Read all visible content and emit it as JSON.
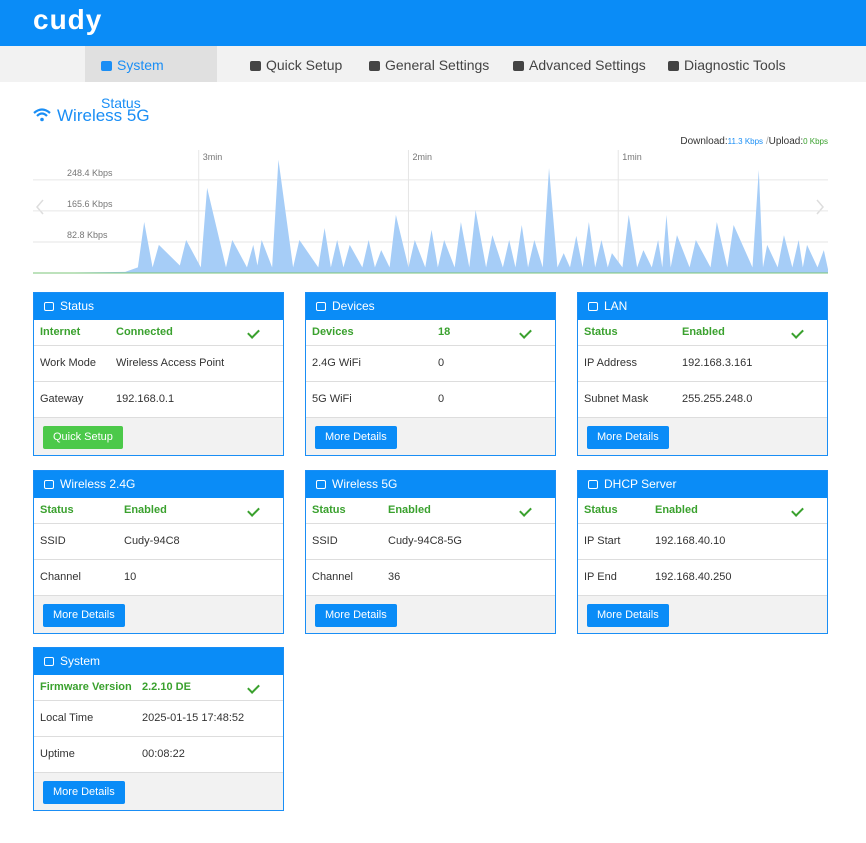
{
  "header": {
    "logo": "cudy"
  },
  "nav": [
    "System Status",
    "Quick Setup",
    "General Settings",
    "Advanced Settings",
    "Diagnostic Tools"
  ],
  "section_title": "Wireless 5G",
  "traffic": {
    "download_label": "Download:",
    "download_value": "11.3 Kbps",
    "separator": "/",
    "upload_label": "Upload:",
    "upload_value": "0 Kbps"
  },
  "chart_data": {
    "type": "area",
    "color": "#a6cdf7",
    "line_color": "#5aa8f0",
    "x": [
      3.79,
      3.35,
      3.29,
      3.26,
      3.22,
      3.19,
      3.09,
      3.06,
      2.99,
      2.96,
      2.87,
      2.84,
      2.77,
      2.74,
      2.72,
      2.7,
      2.65,
      2.62,
      2.55,
      2.52,
      2.43,
      2.4,
      2.37,
      2.34,
      2.31,
      2.28,
      2.22,
      2.19,
      2.16,
      2.13,
      2.09,
      2.06,
      2.0,
      1.97,
      1.92,
      1.89,
      1.86,
      1.83,
      1.78,
      1.75,
      1.71,
      1.68,
      1.63,
      1.6,
      1.55,
      1.52,
      1.49,
      1.46,
      1.43,
      1.4,
      1.36,
      1.33,
      1.29,
      1.26,
      1.23,
      1.2,
      1.17,
      1.14,
      1.11,
      1.08,
      1.05,
      1.03,
      0.98,
      0.95,
      0.91,
      0.88,
      0.84,
      0.81,
      0.79,
      0.77,
      0.75,
      0.72,
      0.66,
      0.63,
      0.56,
      0.53,
      0.48,
      0.45,
      0.36,
      0.33,
      0.31,
      0.29,
      0.24,
      0.21,
      0.17,
      0.14,
      0.12,
      0.1,
      0.05,
      0.02,
      0
    ],
    "values": [
      0,
      3,
      15,
      136,
      15,
      75,
      20,
      88,
      15,
      227,
      15,
      88,
      15,
      75,
      20,
      88,
      15,
      302,
      15,
      88,
      15,
      120,
      15,
      88,
      15,
      75,
      15,
      88,
      15,
      61,
      15,
      155,
      15,
      88,
      15,
      115,
      15,
      88,
      15,
      136,
      15,
      168,
      15,
      101,
      15,
      88,
      15,
      128,
      15,
      88,
      15,
      280,
      15,
      53,
      15,
      99,
      15,
      136,
      15,
      88,
      15,
      53,
      15,
      155,
      15,
      61,
      15,
      88,
      15,
      155,
      15,
      101,
      15,
      88,
      15,
      136,
      15,
      128,
      15,
      275,
      15,
      75,
      15,
      101,
      15,
      88,
      15,
      75,
      15,
      61,
      10
    ],
    "xlim": [
      3.79,
      0
    ],
    "xticks": [
      {
        "value": 3,
        "label": "3min"
      },
      {
        "value": 2,
        "label": "2min"
      },
      {
        "value": 1,
        "label": "1min"
      }
    ],
    "ylim": [
      0,
      328
    ],
    "yticks": [
      {
        "value": 82.8,
        "label": "82.8 Kbps"
      },
      {
        "value": 165.6,
        "label": "165.6 Kbps"
      },
      {
        "value": 248.4,
        "label": "248.4 Kbps"
      }
    ],
    "grid": true
  },
  "cards": [
    {
      "title": "Status",
      "rows": [
        [
          "Internet",
          "Connected"
        ],
        [
          "Work Mode",
          "Wireless Access Point"
        ],
        [
          "Gateway",
          "192.168.0.1"
        ]
      ],
      "button": "Quick Setup"
    },
    {
      "title": "Devices",
      "rows": [
        [
          "Devices",
          "18"
        ],
        [
          "2.4G WiFi",
          "0"
        ],
        [
          "5G WiFi",
          "0"
        ]
      ],
      "button": "More Details"
    },
    {
      "title": "LAN",
      "rows": [
        [
          "Status",
          "Enabled"
        ],
        [
          "IP Address",
          "192.168.3.161"
        ],
        [
          "Subnet Mask",
          "255.255.248.0"
        ]
      ],
      "button": "More Details"
    },
    {
      "title": "Wireless 2.4G",
      "rows": [
        [
          "Status",
          "Enabled"
        ],
        [
          "SSID",
          "Cudy-94C8"
        ],
        [
          "Channel",
          "10"
        ]
      ],
      "button": "More Details"
    },
    {
      "title": "Wireless 5G",
      "rows": [
        [
          "Status",
          "Enabled"
        ],
        [
          "SSID",
          "Cudy-94C8-5G"
        ],
        [
          "Channel",
          "36"
        ]
      ],
      "button": "More Details"
    },
    {
      "title": "DHCP Server",
      "rows": [
        [
          "Status",
          "Enabled"
        ],
        [
          "IP Start",
          "192.168.40.10"
        ],
        [
          "IP End",
          "192.168.40.250"
        ]
      ],
      "button": "More Details"
    },
    {
      "title": "System",
      "rows": [
        [
          "Firmware Version",
          "2.2.10 DE"
        ],
        [
          "Local Time",
          "2025-01-15 17:48:52"
        ],
        [
          "Uptime",
          "00:08:22"
        ]
      ],
      "button": "More Details"
    }
  ]
}
